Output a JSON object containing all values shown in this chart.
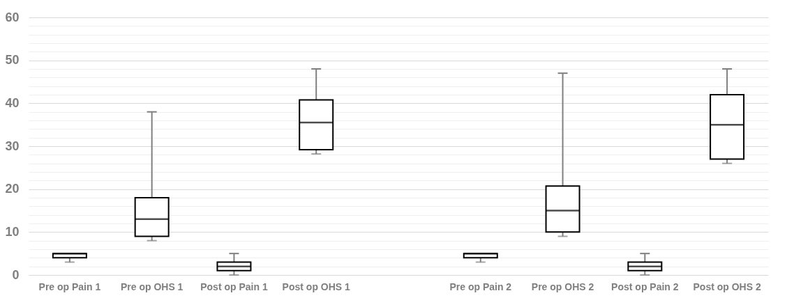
{
  "chart_data": {
    "type": "box",
    "categories": [
      "Pre op Pain 1",
      "Pre op OHS 1",
      "Post op Pain 1",
      "Post op OHS 1",
      null,
      "Pre op Pain 2",
      "Pre op OHS 2",
      "Post op Pain 2",
      "Post op OHS 2"
    ],
    "boxes": [
      {
        "low": 3,
        "q1": 4,
        "median": 5,
        "q3": 5,
        "high": 5
      },
      {
        "low": 8,
        "q1": 9,
        "median": 13,
        "q3": 18,
        "high": 38
      },
      {
        "low": 0,
        "q1": 1,
        "median": 2,
        "q3": 3,
        "high": 5
      },
      {
        "low": 28.2,
        "q1": 29.2,
        "median": 35.5,
        "q3": 40.8,
        "high": 48
      },
      null,
      {
        "low": 3,
        "q1": 4,
        "median": 5,
        "q3": 5,
        "high": 5
      },
      {
        "low": 9,
        "q1": 10,
        "median": 15,
        "q3": 20.7,
        "high": 47
      },
      {
        "low": 0,
        "q1": 1,
        "median": 2,
        "q3": 3,
        "high": 5
      },
      {
        "low": 26,
        "q1": 27,
        "median": 35,
        "q3": 42,
        "high": 48
      }
    ],
    "ylim": [
      0,
      60
    ],
    "yticks": [
      0,
      {
        "value": 2,
        "label": null
      },
      {
        "value": 4,
        "label": null
      },
      {
        "value": 6,
        "label": null
      },
      {
        "value": 8,
        "label": null
      },
      10,
      {
        "value": 12,
        "label": null
      },
      {
        "value": 14,
        "label": null
      },
      {
        "value": 16,
        "label": null
      },
      {
        "value": 18,
        "label": null
      },
      20,
      {
        "value": 22,
        "label": null
      },
      {
        "value": 24,
        "label": null
      },
      {
        "value": 26,
        "label": null
      },
      {
        "value": 28,
        "label": null
      },
      30,
      {
        "value": 32,
        "label": null
      },
      {
        "value": 34,
        "label": null
      },
      {
        "value": 36,
        "label": null
      },
      {
        "value": 38,
        "label": null
      },
      40,
      {
        "value": 42,
        "label": null
      },
      {
        "value": 44,
        "label": null
      },
      {
        "value": 46,
        "label": null
      },
      {
        "value": 48,
        "label": null
      },
      50,
      {
        "value": 52,
        "label": null
      },
      {
        "value": 54,
        "label": null
      },
      {
        "value": 56,
        "label": null
      },
      {
        "value": 58,
        "label": null
      },
      60
    ],
    "grid": true
  }
}
